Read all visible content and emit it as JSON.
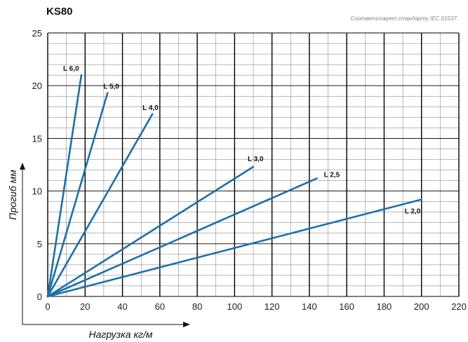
{
  "header": {
    "title": "KS80",
    "standard_note": "Соответствует стандарту IEC 61537."
  },
  "chart_data": {
    "type": "line",
    "title": "KS80",
    "xlabel": "Нагрузка кг/м",
    "ylabel": "Прогиб мм",
    "xlim": [
      0,
      220
    ],
    "ylim": [
      0,
      25
    ],
    "x_ticks": [
      0,
      20,
      40,
      60,
      80,
      100,
      120,
      140,
      160,
      180,
      200,
      220
    ],
    "y_ticks": [
      0,
      5,
      10,
      15,
      20,
      25
    ],
    "grid": true,
    "series": [
      {
        "name": "L 6,0",
        "x": [
          0,
          18
        ],
        "y": [
          0,
          21
        ]
      },
      {
        "name": "L 5,0",
        "x": [
          0,
          32
        ],
        "y": [
          0,
          19.3
        ]
      },
      {
        "name": "L 4,0",
        "x": [
          0,
          56
        ],
        "y": [
          0,
          17.3
        ]
      },
      {
        "name": "L 3,0",
        "x": [
          0,
          110
        ],
        "y": [
          0,
          12.3
        ]
      },
      {
        "name": "L 2,5",
        "x": [
          0,
          144
        ],
        "y": [
          0,
          11.2
        ]
      },
      {
        "name": "L 2,0",
        "x": [
          0,
          200
        ],
        "y": [
          0,
          9.2
        ]
      }
    ],
    "line_color": "#1f6fa8",
    "grid_color": "#000000"
  }
}
